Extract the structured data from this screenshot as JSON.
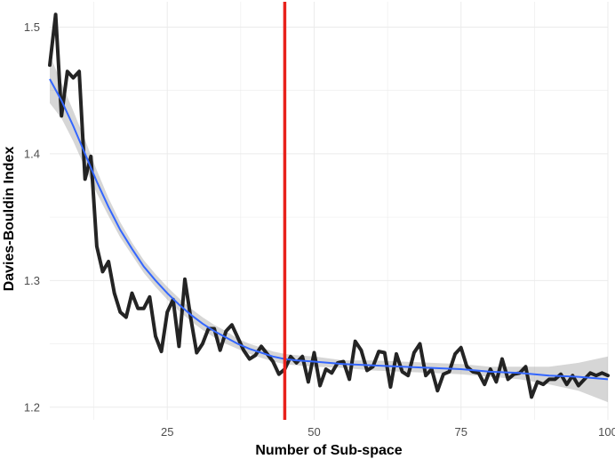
{
  "chart_data": {
    "type": "line",
    "title": "",
    "xlabel": "Number of Sub-space",
    "ylabel": "Davies-Bouldin Index",
    "xlim": [
      5,
      100
    ],
    "ylim": [
      1.19,
      1.52
    ],
    "x_ticks": [
      25,
      50,
      75,
      100
    ],
    "y_ticks": [
      1.2,
      1.3,
      1.4,
      1.5
    ],
    "x_tick_labels": [
      "25",
      "50",
      "75",
      "100"
    ],
    "y_tick_labels": [
      "1.2",
      "1.3",
      "1.4",
      "1.5"
    ],
    "grid": true,
    "legend": "none",
    "vline": {
      "x": 45,
      "color": "#e8211b"
    },
    "colors": {
      "observed": "#111111",
      "smooth": "#3366ff",
      "ribbon": "#999999",
      "vline": "#e8211b"
    },
    "series": [
      {
        "type": "line",
        "x": [
          5,
          6,
          7,
          8,
          9,
          10,
          11,
          12,
          13,
          14,
          15,
          16,
          17,
          18,
          19,
          20,
          21,
          22,
          23,
          24,
          25,
          26,
          27,
          28,
          29,
          30,
          31,
          32,
          33,
          34,
          35,
          36,
          37,
          38,
          39,
          40,
          41,
          42,
          43,
          44,
          45,
          46,
          47,
          48,
          49,
          50,
          51,
          52,
          53,
          54,
          55,
          56,
          57,
          58,
          59,
          60,
          61,
          62,
          63,
          64,
          65,
          66,
          67,
          68,
          69,
          70,
          71,
          72,
          73,
          74,
          75,
          76,
          77,
          78,
          79,
          80,
          81,
          82,
          83,
          84,
          85,
          86,
          87,
          88,
          89,
          90,
          91,
          92,
          93,
          94,
          95,
          96,
          97,
          98,
          99,
          100
        ],
        "y": [
          1.47,
          1.51,
          1.43,
          1.465,
          1.46,
          1.465,
          1.38,
          1.398,
          1.327,
          1.307,
          1.315,
          1.29,
          1.275,
          1.271,
          1.29,
          1.278,
          1.278,
          1.287,
          1.256,
          1.244,
          1.275,
          1.285,
          1.248,
          1.301,
          1.27,
          1.243,
          1.25,
          1.262,
          1.262,
          1.245,
          1.26,
          1.265,
          1.255,
          1.245,
          1.238,
          1.241,
          1.248,
          1.242,
          1.236,
          1.226,
          1.23,
          1.24,
          1.235,
          1.24,
          1.22,
          1.243,
          1.217,
          1.23,
          1.227,
          1.235,
          1.236,
          1.222,
          1.252,
          1.245,
          1.229,
          1.232,
          1.244,
          1.243,
          1.216,
          1.242,
          1.228,
          1.225,
          1.243,
          1.25,
          1.225,
          1.23,
          1.213,
          1.226,
          1.228,
          1.242,
          1.247,
          1.232,
          1.228,
          1.227,
          1.218,
          1.23,
          1.22,
          1.238,
          1.222,
          1.226,
          1.227,
          1.232,
          1.208,
          1.22,
          1.218,
          1.222,
          1.222,
          1.226,
          1.218,
          1.225,
          1.217,
          1.222,
          1.227,
          1.225,
          1.227,
          1.225
        ]
      },
      {
        "type": "smooth",
        "x": [
          5,
          7,
          9,
          11,
          13,
          15,
          17,
          19,
          21,
          23,
          25,
          27,
          29,
          31,
          33,
          35,
          37,
          39,
          41,
          43,
          45,
          47,
          50,
          55,
          60,
          65,
          70,
          75,
          80,
          85,
          90,
          95,
          100
        ],
        "y": [
          1.459,
          1.442,
          1.422,
          1.4,
          1.378,
          1.358,
          1.34,
          1.325,
          1.311,
          1.3,
          1.29,
          1.281,
          1.273,
          1.266,
          1.26,
          1.255,
          1.25,
          1.246,
          1.243,
          1.24,
          1.238,
          1.237,
          1.236,
          1.234,
          1.233,
          1.232,
          1.231,
          1.23,
          1.228,
          1.227,
          1.225,
          1.224,
          1.222
        ],
        "band_lower": [
          1.44,
          1.428,
          1.41,
          1.389,
          1.369,
          1.351,
          1.334,
          1.32,
          1.306,
          1.295,
          1.285,
          1.276,
          1.268,
          1.261,
          1.255,
          1.25,
          1.246,
          1.242,
          1.239,
          1.236,
          1.234,
          1.233,
          1.232,
          1.231,
          1.229,
          1.228,
          1.227,
          1.226,
          1.224,
          1.222,
          1.218,
          1.213,
          1.204
        ],
        "band_upper": [
          1.478,
          1.456,
          1.434,
          1.411,
          1.387,
          1.365,
          1.346,
          1.33,
          1.316,
          1.305,
          1.295,
          1.286,
          1.278,
          1.271,
          1.265,
          1.26,
          1.254,
          1.25,
          1.247,
          1.244,
          1.242,
          1.241,
          1.24,
          1.237,
          1.237,
          1.236,
          1.235,
          1.234,
          1.232,
          1.232,
          1.232,
          1.235,
          1.24
        ]
      }
    ]
  }
}
